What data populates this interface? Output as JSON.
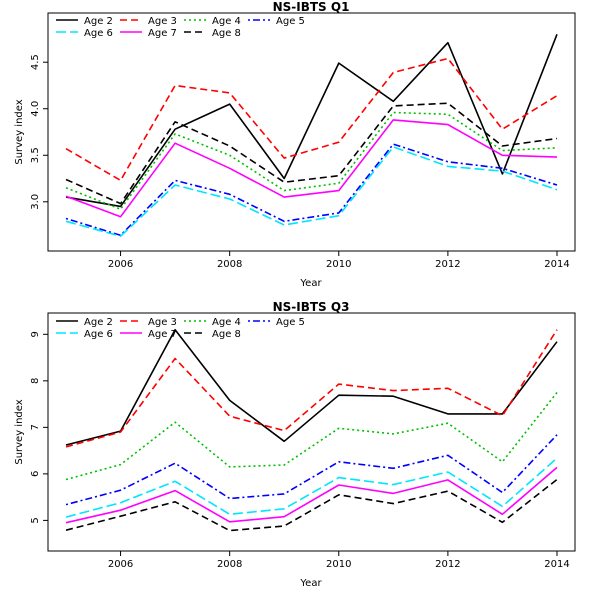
{
  "chart_data": [
    {
      "type": "line",
      "title": "NS-IBTS Q1",
      "xlabel": "Year",
      "ylabel": "Survey index",
      "xlim": [
        2005,
        2014
      ],
      "ylim": [
        2.6,
        4.9
      ],
      "x": [
        2005,
        2006,
        2007,
        2008,
        2009,
        2010,
        2011,
        2012,
        2013,
        2014
      ],
      "x_ticks": [
        "2006",
        "2008",
        "2010",
        "2012",
        "2014"
      ],
      "y_ticks": [
        "3.0",
        "3.5",
        "4.0",
        "4.5"
      ],
      "legend_position": "top-left",
      "series": [
        {
          "name": "Age 2",
          "color": "#000000",
          "dash": "solid",
          "values": [
            3.05,
            2.95,
            3.78,
            4.05,
            3.25,
            4.49,
            4.08,
            4.71,
            3.3,
            4.8
          ]
        },
        {
          "name": "Age 3",
          "color": "#ff0000",
          "dash": "dashed",
          "values": [
            3.57,
            3.23,
            4.25,
            4.17,
            3.47,
            3.64,
            4.39,
            4.54,
            3.78,
            4.14
          ]
        },
        {
          "name": "Age 4",
          "color": "#00c000",
          "dash": "dotted",
          "values": [
            3.15,
            2.92,
            3.73,
            3.5,
            3.12,
            3.2,
            3.96,
            3.94,
            3.55,
            3.58
          ]
        },
        {
          "name": "Age 5",
          "color": "#0000ff",
          "dash": "dotdash",
          "values": [
            2.82,
            2.64,
            3.23,
            3.08,
            2.79,
            2.88,
            3.62,
            3.43,
            3.36,
            3.18
          ]
        },
        {
          "name": "Age 6",
          "color": "#00e5ff",
          "dash": "longdash",
          "values": [
            2.79,
            2.63,
            3.18,
            3.03,
            2.75,
            2.85,
            3.59,
            3.38,
            3.33,
            3.13
          ]
        },
        {
          "name": "Age 7",
          "color": "#ff00ff",
          "dash": "solid",
          "values": [
            3.06,
            2.84,
            3.63,
            3.36,
            3.05,
            3.12,
            3.88,
            3.83,
            3.5,
            3.48
          ]
        },
        {
          "name": "Age 8",
          "color": "#000000",
          "dash": "dashed",
          "values": [
            3.24,
            2.98,
            3.86,
            3.6,
            3.21,
            3.28,
            4.03,
            4.06,
            3.6,
            3.68
          ]
        }
      ]
    },
    {
      "type": "line",
      "title": "NS-IBTS Q3",
      "xlabel": "Year",
      "ylabel": "Survey index",
      "xlim": [
        2005,
        2014
      ],
      "ylim": [
        4.6,
        9.2
      ],
      "x": [
        2005,
        2006,
        2007,
        2008,
        2009,
        2010,
        2011,
        2012,
        2013,
        2014
      ],
      "x_ticks": [
        "2006",
        "2008",
        "2010",
        "2012",
        "2014"
      ],
      "y_ticks": [
        "5",
        "6",
        "7",
        "8",
        "9"
      ],
      "legend_position": "top-left",
      "series": [
        {
          "name": "Age 2",
          "color": "#000000",
          "dash": "solid",
          "values": [
            6.62,
            6.92,
            9.1,
            7.58,
            6.7,
            7.69,
            7.67,
            7.29,
            7.29,
            8.84
          ]
        },
        {
          "name": "Age 3",
          "color": "#ff0000",
          "dash": "dashed",
          "values": [
            6.58,
            6.9,
            8.48,
            7.24,
            6.93,
            7.93,
            7.79,
            7.84,
            7.25,
            9.1
          ]
        },
        {
          "name": "Age 4",
          "color": "#00c000",
          "dash": "dotted",
          "values": [
            5.88,
            6.2,
            7.11,
            6.15,
            6.19,
            6.98,
            6.86,
            7.09,
            6.26,
            7.75
          ]
        },
        {
          "name": "Age 5",
          "color": "#0000ff",
          "dash": "dotdash",
          "values": [
            5.34,
            5.65,
            6.23,
            5.47,
            5.57,
            6.26,
            6.12,
            6.4,
            5.6,
            6.84
          ]
        },
        {
          "name": "Age 6",
          "color": "#00e5ff",
          "dash": "longdash",
          "values": [
            5.07,
            5.38,
            5.84,
            5.13,
            5.25,
            5.92,
            5.77,
            6.04,
            5.3,
            6.34
          ]
        },
        {
          "name": "Age 7",
          "color": "#ff00ff",
          "dash": "solid",
          "values": [
            4.95,
            5.22,
            5.64,
            4.97,
            5.08,
            5.76,
            5.58,
            5.87,
            5.13,
            6.14
          ]
        },
        {
          "name": "Age 8",
          "color": "#000000",
          "dash": "dashed",
          "values": [
            4.79,
            5.09,
            5.4,
            4.78,
            4.88,
            5.55,
            5.36,
            5.63,
            4.96,
            5.88
          ]
        }
      ]
    }
  ]
}
